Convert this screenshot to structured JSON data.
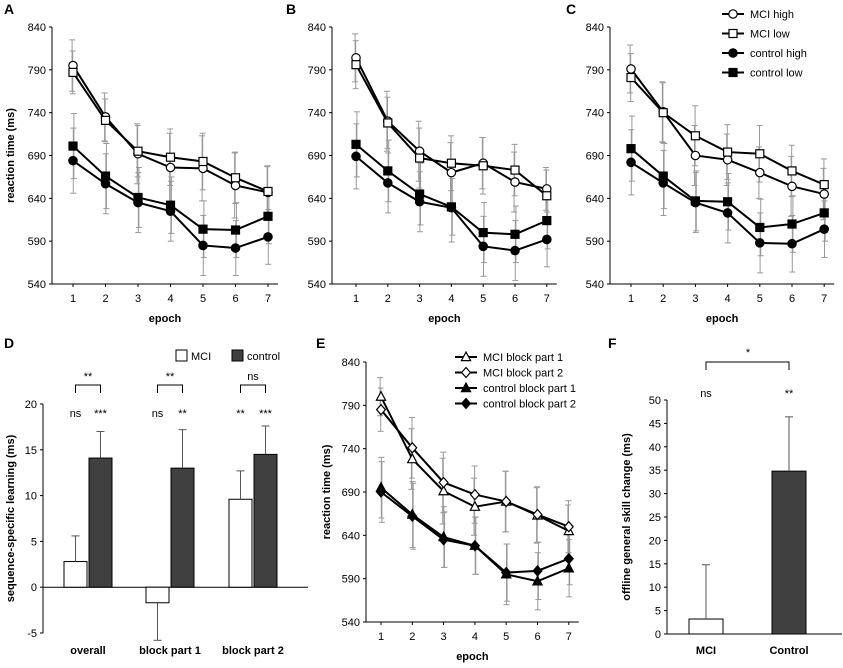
{
  "chart_data": [
    {
      "panel": "A",
      "type": "line",
      "xlabel": "epoch",
      "ylabel": "reaction time (ms)",
      "x": [
        1,
        2,
        3,
        4,
        5,
        6,
        7
      ],
      "ylim": [
        540,
        840
      ],
      "yticks": [
        540,
        590,
        640,
        690,
        740,
        790,
        840
      ],
      "series": [
        {
          "name": "MCI high",
          "marker": "circle-open",
          "values": [
            795,
            735,
            692,
            676,
            675,
            655,
            647
          ],
          "err": [
            30,
            28,
            35,
            40,
            38,
            38,
            30
          ]
        },
        {
          "name": "MCI low",
          "marker": "square-open",
          "values": [
            787,
            731,
            695,
            688,
            683,
            664,
            648
          ],
          "err": [
            25,
            25,
            30,
            33,
            33,
            30,
            30
          ]
        },
        {
          "name": "control high",
          "marker": "circle-filled",
          "values": [
            684,
            657,
            635,
            625,
            585,
            582,
            595
          ],
          "err": [
            38,
            35,
            35,
            35,
            35,
            32,
            32
          ]
        },
        {
          "name": "control low",
          "marker": "square-filled",
          "values": [
            701,
            666,
            641,
            632,
            604,
            603,
            619
          ],
          "err": [
            38,
            38,
            35,
            33,
            33,
            32,
            32
          ]
        }
      ]
    },
    {
      "panel": "B",
      "type": "line",
      "xlabel": "epoch",
      "ylabel": "",
      "x": [
        1,
        2,
        3,
        4,
        5,
        6,
        7
      ],
      "ylim": [
        540,
        840
      ],
      "yticks": [
        540,
        590,
        640,
        690,
        740,
        790,
        840
      ],
      "series": [
        {
          "name": "MCI high",
          "marker": "circle-open",
          "values": [
            804,
            730,
            695,
            670,
            681,
            659,
            651
          ],
          "err": [
            28,
            35,
            35,
            35,
            30,
            35,
            25
          ]
        },
        {
          "name": "MCI low",
          "marker": "square-open",
          "values": [
            796,
            728,
            687,
            681,
            678,
            673,
            643
          ],
          "err": [
            28,
            30,
            35,
            32,
            33,
            30,
            30
          ]
        },
        {
          "name": "control high",
          "marker": "circle-filled",
          "values": [
            689,
            658,
            636,
            629,
            584,
            579,
            592
          ],
          "err": [
            38,
            35,
            35,
            40,
            35,
            35,
            32
          ]
        },
        {
          "name": "control low",
          "marker": "square-filled",
          "values": [
            703,
            672,
            645,
            630,
            600,
            598,
            614
          ],
          "err": [
            38,
            36,
            36,
            33,
            35,
            33,
            33
          ]
        }
      ]
    },
    {
      "panel": "C",
      "type": "line",
      "xlabel": "epoch",
      "ylabel": "",
      "x": [
        1,
        2,
        3,
        4,
        5,
        6,
        7
      ],
      "ylim": [
        540,
        840
      ],
      "yticks": [
        540,
        590,
        640,
        690,
        740,
        790,
        840
      ],
      "series": [
        {
          "name": "MCI high",
          "marker": "circle-open",
          "values": [
            791,
            741,
            690,
            685,
            670,
            654,
            645
          ],
          "err": [
            28,
            35,
            35,
            30,
            30,
            35,
            30
          ]
        },
        {
          "name": "MCI low",
          "marker": "square-open",
          "values": [
            781,
            740,
            713,
            694,
            692,
            672,
            656
          ],
          "err": [
            28,
            35,
            35,
            32,
            33,
            30,
            30
          ]
        },
        {
          "name": "control high",
          "marker": "circle-filled",
          "values": [
            682,
            658,
            635,
            623,
            588,
            587,
            604
          ],
          "err": [
            38,
            38,
            35,
            35,
            35,
            33,
            33
          ]
        },
        {
          "name": "control low",
          "marker": "square-filled",
          "values": [
            698,
            666,
            637,
            636,
            606,
            610,
            623
          ],
          "err": [
            38,
            38,
            35,
            33,
            33,
            33,
            33
          ]
        }
      ]
    },
    {
      "panel": "D",
      "type": "bar",
      "xlabel": "",
      "ylabel": "sequence-specific learning (ms)",
      "categories": [
        "overall",
        "block part 1",
        "block part 2"
      ],
      "ylim": [
        -5,
        20
      ],
      "yticks": [
        -5,
        0,
        5,
        10,
        15,
        20
      ],
      "series": [
        {
          "name": "MCI",
          "color": "#ffffff",
          "values": [
            2.8,
            -1.7,
            9.6
          ],
          "err": [
            2.8,
            4.1,
            3.1
          ]
        },
        {
          "name": "control",
          "color": "#404040",
          "values": [
            14.1,
            13.0,
            14.5
          ],
          "err": [
            2.9,
            4.2,
            3.1
          ]
        }
      ],
      "bar_labels": [
        [
          "ns",
          "***"
        ],
        [
          "ns",
          "**"
        ],
        [
          "**",
          "***"
        ]
      ],
      "bracket_labels": [
        "**",
        "**",
        "ns"
      ]
    },
    {
      "panel": "E",
      "type": "line",
      "xlabel": "epoch",
      "ylabel": "reaction time (ms)",
      "x": [
        1,
        2,
        3,
        4,
        5,
        6,
        7
      ],
      "ylim": [
        540,
        840
      ],
      "yticks": [
        540,
        590,
        640,
        690,
        740,
        790,
        840
      ],
      "series": [
        {
          "name": "MCI block part 1",
          "marker": "triangle-open",
          "values": [
            800,
            728,
            691,
            673,
            679,
            663,
            645
          ],
          "err": [
            22,
            35,
            38,
            33,
            35,
            32,
            30
          ]
        },
        {
          "name": "MCI block part 2",
          "marker": "diamond-open",
          "values": [
            785,
            741,
            701,
            687,
            679,
            664,
            650
          ],
          "err": [
            25,
            35,
            35,
            33,
            35,
            32,
            30
          ]
        },
        {
          "name": "control block part 1",
          "marker": "triangle-filled",
          "values": [
            695,
            664,
            638,
            628,
            595,
            587,
            602
          ],
          "err": [
            35,
            38,
            35,
            33,
            35,
            33,
            33
          ]
        },
        {
          "name": "control block part 2",
          "marker": "diamond-filled",
          "values": [
            690,
            662,
            635,
            628,
            597,
            599,
            613
          ],
          "err": [
            35,
            38,
            32,
            33,
            33,
            33,
            30
          ]
        }
      ]
    },
    {
      "panel": "F",
      "type": "bar",
      "xlabel": "",
      "ylabel": "offline general skill change (ms)",
      "categories": [
        "MCI",
        "Control"
      ],
      "ylim": [
        0,
        50
      ],
      "yticks": [
        0,
        5,
        10,
        15,
        20,
        25,
        30,
        35,
        40,
        45,
        50
      ],
      "colors": [
        "#ffffff",
        "#404040"
      ],
      "values": [
        3.2,
        34.8
      ],
      "err": [
        11.6,
        11.6
      ],
      "bar_labels": [
        "ns",
        "**"
      ],
      "bracket_label": "*"
    }
  ]
}
